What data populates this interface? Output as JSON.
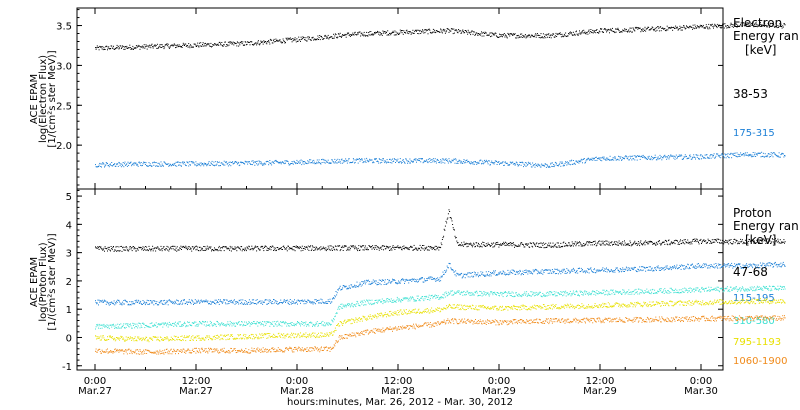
{
  "chart_data": [
    {
      "type": "scatter",
      "title": "",
      "ylabel": [
        "ACE EPAM",
        "log(Electron Flux)",
        "[1/(cm²s ster MeV)]"
      ],
      "ylim": [
        1.45,
        3.72
      ],
      "yticks": [
        "2.0",
        "2.5",
        "3.0",
        "3.5"
      ],
      "yticks_values": [
        2.0,
        2.5,
        3.0,
        3.5
      ],
      "legend_title": [
        "Electron",
        "Energy ran",
        "[keV]"
      ],
      "grid": false,
      "series": [
        {
          "name": "38-53",
          "color": "#000000",
          "points": [
            [
              0,
              3.22
            ],
            [
              6,
              3.24
            ],
            [
              12,
              3.26
            ],
            [
              18,
              3.28
            ],
            [
              24,
              3.33
            ],
            [
              28,
              3.37
            ],
            [
              30,
              3.39
            ],
            [
              36,
              3.42
            ],
            [
              42,
              3.44
            ],
            [
              48,
              3.38
            ],
            [
              54,
              3.38
            ],
            [
              60,
              3.44
            ],
            [
              66,
              3.46
            ],
            [
              72,
              3.49
            ],
            [
              78,
              3.52
            ],
            [
              82,
              3.5
            ]
          ]
        },
        {
          "name": "175-315",
          "color": "#1b7fd6",
          "points": [
            [
              0,
              1.76
            ],
            [
              6,
              1.77
            ],
            [
              12,
              1.77
            ],
            [
              18,
              1.78
            ],
            [
              24,
              1.79
            ],
            [
              30,
              1.81
            ],
            [
              36,
              1.81
            ],
            [
              42,
              1.81
            ],
            [
              48,
              1.78
            ],
            [
              54,
              1.75
            ],
            [
              60,
              1.84
            ],
            [
              66,
              1.85
            ],
            [
              72,
              1.86
            ],
            [
              78,
              1.89
            ],
            [
              82,
              1.88
            ]
          ]
        }
      ]
    },
    {
      "type": "scatter",
      "title": "",
      "ylabel": [
        "ACE EPAM",
        "log(Proton Flux)",
        "[1/(cm²s ster MeV)]"
      ],
      "ylim": [
        -1.15,
        5.25
      ],
      "yticks": [
        "-1",
        "0",
        "1",
        "2",
        "3",
        "4",
        "5"
      ],
      "yticks_values": [
        -1,
        0,
        1,
        2,
        3,
        4,
        5
      ],
      "legend_title": [
        "Proton",
        "Energy ran",
        "[keV]"
      ],
      "grid": false,
      "series": [
        {
          "name": "47-68",
          "color": "#000000",
          "points": [
            [
              0,
              3.15
            ],
            [
              6,
              3.15
            ],
            [
              12,
              3.16
            ],
            [
              18,
              3.16
            ],
            [
              24,
              3.17
            ],
            [
              30,
              3.18
            ],
            [
              36,
              3.18
            ],
            [
              41,
              3.2
            ],
            [
              42,
              4.5
            ],
            [
              43,
              3.3
            ],
            [
              48,
              3.3
            ],
            [
              54,
              3.28
            ],
            [
              60,
              3.35
            ],
            [
              66,
              3.35
            ],
            [
              72,
              3.42
            ],
            [
              78,
              3.4
            ],
            [
              82,
              3.44
            ]
          ]
        },
        {
          "name": "115-195",
          "color": "#1b7fd6",
          "points": [
            [
              0,
              1.25
            ],
            [
              6,
              1.25
            ],
            [
              12,
              1.27
            ],
            [
              18,
              1.27
            ],
            [
              24,
              1.28
            ],
            [
              28,
              1.3
            ],
            [
              29,
              1.75
            ],
            [
              32,
              1.95
            ],
            [
              36,
              2.0
            ],
            [
              41,
              2.1
            ],
            [
              42,
              2.6
            ],
            [
              43,
              2.2
            ],
            [
              48,
              2.3
            ],
            [
              54,
              2.35
            ],
            [
              60,
              2.4
            ],
            [
              66,
              2.45
            ],
            [
              72,
              2.55
            ],
            [
              78,
              2.55
            ],
            [
              82,
              2.6
            ]
          ]
        },
        {
          "name": "310-580",
          "color": "#3de0d2",
          "points": [
            [
              0,
              0.4
            ],
            [
              6,
              0.45
            ],
            [
              12,
              0.5
            ],
            [
              18,
              0.5
            ],
            [
              24,
              0.5
            ],
            [
              28,
              0.5
            ],
            [
              29,
              1.1
            ],
            [
              32,
              1.25
            ],
            [
              36,
              1.35
            ],
            [
              41,
              1.45
            ],
            [
              42,
              1.6
            ],
            [
              48,
              1.55
            ],
            [
              54,
              1.55
            ],
            [
              60,
              1.6
            ],
            [
              66,
              1.65
            ],
            [
              72,
              1.7
            ],
            [
              78,
              1.75
            ],
            [
              82,
              1.75
            ]
          ]
        },
        {
          "name": "795-1193",
          "color": "#e8e000",
          "points": [
            [
              0,
              0.0
            ],
            [
              6,
              -0.05
            ],
            [
              12,
              0.0
            ],
            [
              18,
              0.05
            ],
            [
              24,
              0.1
            ],
            [
              28,
              0.1
            ],
            [
              29,
              0.5
            ],
            [
              32,
              0.7
            ],
            [
              36,
              0.9
            ],
            [
              41,
              1.0
            ],
            [
              42,
              1.1
            ],
            [
              48,
              1.05
            ],
            [
              54,
              1.1
            ],
            [
              60,
              1.15
            ],
            [
              66,
              1.2
            ],
            [
              72,
              1.25
            ],
            [
              78,
              1.3
            ],
            [
              82,
              1.3
            ]
          ]
        },
        {
          "name": "1060-1900",
          "color": "#f08a1a",
          "points": [
            [
              0,
              -0.45
            ],
            [
              6,
              -0.5
            ],
            [
              12,
              -0.45
            ],
            [
              18,
              -0.45
            ],
            [
              24,
              -0.4
            ],
            [
              28,
              -0.4
            ],
            [
              29,
              0.0
            ],
            [
              32,
              0.2
            ],
            [
              36,
              0.35
            ],
            [
              41,
              0.5
            ],
            [
              42,
              0.6
            ],
            [
              48,
              0.55
            ],
            [
              54,
              0.6
            ],
            [
              60,
              0.62
            ],
            [
              66,
              0.65
            ],
            [
              72,
              0.68
            ],
            [
              78,
              0.7
            ],
            [
              82,
              0.7
            ]
          ]
        }
      ]
    }
  ],
  "x_axis": {
    "ticks": [
      {
        "time": "0:00",
        "date": "Mar.27"
      },
      {
        "time": "12:00",
        "date": "Mar.27"
      },
      {
        "time": "0:00",
        "date": "Mar.28"
      },
      {
        "time": "12:00",
        "date": "Mar.28"
      },
      {
        "time": "0:00",
        "date": "Mar.29"
      },
      {
        "time": "12:00",
        "date": "Mar.29"
      },
      {
        "time": "0:00",
        "date": "Mar.30"
      }
    ],
    "xlabel": "hours:minutes, Mar. 26, 2012 - Mar. 30, 2012"
  }
}
